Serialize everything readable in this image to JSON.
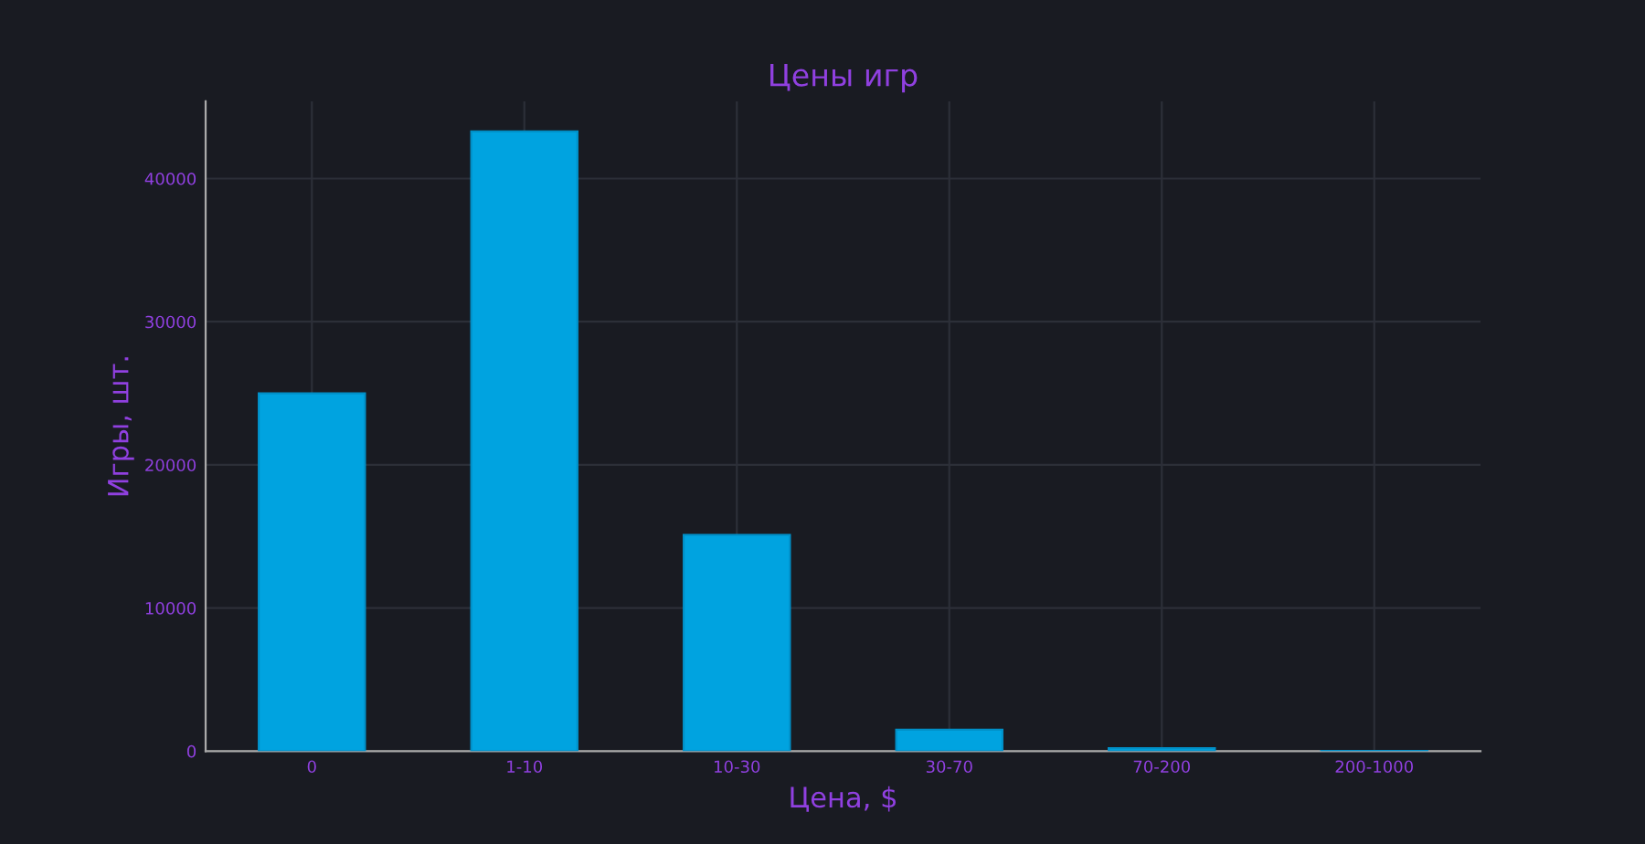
{
  "chart_data": {
    "type": "bar",
    "title": "Цены игр",
    "xlabel": "Цена, $",
    "ylabel": "Игры, шт.",
    "categories": [
      "0",
      "1-10",
      "10-30",
      "30-70",
      "70-200",
      "200-1000"
    ],
    "values": [
      25000,
      43300,
      15100,
      1500,
      200,
      20
    ],
    "color": "#00a3e0",
    "ylim": [
      0,
      45400
    ],
    "yticks": [
      0,
      10000,
      20000,
      30000,
      40000
    ],
    "grid": true
  }
}
